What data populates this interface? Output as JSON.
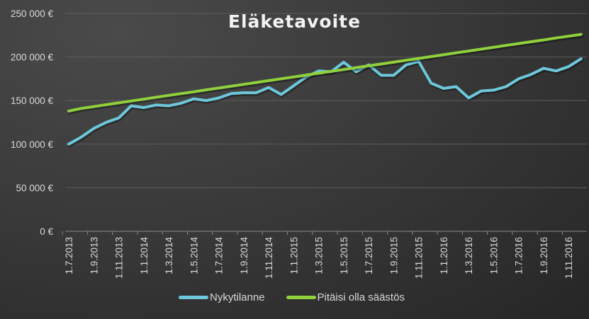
{
  "chart_data": {
    "type": "line",
    "title": "Eläketavoite",
    "xlabel": "",
    "ylabel": "",
    "ylim": [
      0,
      250000
    ],
    "yticks": [
      0,
      50000,
      100000,
      150000,
      200000,
      250000
    ],
    "ytick_labels": [
      "0 €",
      "50 000 €",
      "100 000 €",
      "150 000 €",
      "200 000 €",
      "250 000 €"
    ],
    "grid": true,
    "legend_position": "bottom",
    "x": [
      "1.7.2013",
      "1.8.2013",
      "1.9.2013",
      "1.10.2013",
      "1.11.2013",
      "1.12.2013",
      "1.1.2014",
      "1.2.2014",
      "1.3.2014",
      "1.4.2014",
      "1.5.2014",
      "1.6.2014",
      "1.7.2014",
      "1.8.2014",
      "1.9.2014",
      "1.10.2014",
      "1.11.2014",
      "1.12.2014",
      "1.1.2015",
      "1.2.2015",
      "1.3.2015",
      "1.4.2015",
      "1.5.2015",
      "1.6.2015",
      "1.7.2015",
      "1.8.2015",
      "1.9.2015",
      "1.10.2015",
      "1.11.2015",
      "1.12.2015",
      "1.1.2016",
      "1.2.2016",
      "1.3.2016",
      "1.4.2016",
      "1.5.2016",
      "1.6.2016",
      "1.7.2016",
      "1.8.2016",
      "1.9.2016",
      "1.10.2016",
      "1.11.2016",
      "1.12.2016"
    ],
    "xtick_labels": [
      "1.7.2013",
      "1.9.2013",
      "1.11.2013",
      "1.1.2014",
      "1.3.2014",
      "1.5.2014",
      "1.7.2014",
      "1.9.2014",
      "1.11.2014",
      "1.1.2015",
      "1.3.2015",
      "1.5.2015",
      "1.7.2015",
      "1.9.2015",
      "1.11.2015",
      "1.1.2016",
      "1.3.2016",
      "1.5.2016",
      "1.7.2016",
      "1.9.2016",
      "1.11.2016"
    ],
    "series": [
      {
        "name": "Nykytilanne",
        "color": "#6cc8da",
        "values": [
          100000,
          108000,
          118000,
          125000,
          130000,
          144000,
          142000,
          145000,
          144000,
          147000,
          152000,
          150000,
          153000,
          158000,
          159000,
          159000,
          165000,
          157000,
          167000,
          177000,
          184000,
          183000,
          194000,
          183000,
          191000,
          179000,
          179000,
          191000,
          195000,
          170000,
          164000,
          166000,
          153000,
          161000,
          162000,
          166000,
          175000,
          180000,
          187000,
          184000,
          189000,
          198000
        ]
      },
      {
        "name": "Pitäisi olla säästös",
        "color": "#8fd03c",
        "values": [
          138000,
          141000,
          143100,
          145300,
          147400,
          149500,
          151600,
          153800,
          155900,
          158000,
          160100,
          162300,
          164400,
          166500,
          168600,
          170800,
          172900,
          175000,
          177100,
          179300,
          181400,
          183500,
          185600,
          187800,
          189900,
          192000,
          194100,
          196300,
          198400,
          200500,
          202600,
          204800,
          206900,
          209000,
          211100,
          213300,
          215400,
          217500,
          219600,
          221800,
          223900,
          226000
        ]
      }
    ]
  }
}
